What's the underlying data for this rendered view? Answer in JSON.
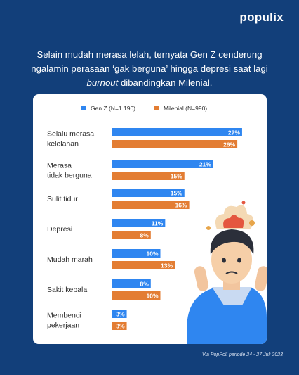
{
  "brand": {
    "name": "populix"
  },
  "headline": {
    "before": "Selain mudah merasa lelah, ternyata Gen Z cenderung ngalamin perasaan ‘gak berguna’ hingga depresi saat lagi ",
    "emphasis": "burnout",
    "after": " dibandingkan Milenial."
  },
  "source": "Via PopPoll periode 24 - 27 Juli 2023",
  "colors": {
    "gen_z": "#2f86f0",
    "milenial": "#e37d33",
    "background": "#123f7a"
  },
  "chart_data": {
    "type": "bar",
    "orientation": "horizontal",
    "categories": [
      [
        "Selalu merasa",
        "kelelahan"
      ],
      [
        "Merasa",
        "tidak berguna"
      ],
      [
        "Sulit tidur"
      ],
      [
        "Depresi"
      ],
      [
        "Mudah marah"
      ],
      [
        "Sakit kepala"
      ],
      [
        "Membenci",
        "pekerjaan"
      ]
    ],
    "series": [
      {
        "name": "Gen Z (N=1.190)",
        "values": [
          27,
          21,
          15,
          11,
          10,
          8,
          3
        ]
      },
      {
        "name": "Milenial (N=990)",
        "values": [
          26,
          15,
          16,
          8,
          13,
          10,
          3
        ]
      }
    ],
    "value_suffix": "%",
    "legend": "top",
    "grid": false
  }
}
